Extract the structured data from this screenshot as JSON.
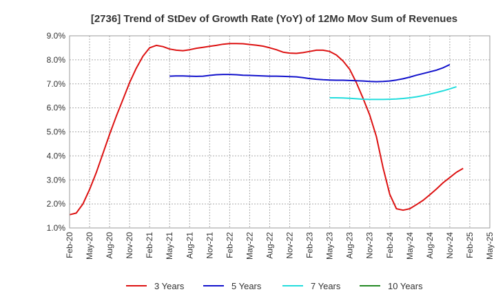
{
  "chart_data": {
    "type": "line",
    "title": "[2736]  Trend of StDev of Growth Rate (YoY) of 12Mo Mov Sum of Revenues",
    "xlabel": "",
    "ylabel": "",
    "ylim": [
      1.0,
      9.0
    ],
    "y_ticks": [
      1.0,
      2.0,
      3.0,
      4.0,
      5.0,
      6.0,
      7.0,
      8.0,
      9.0
    ],
    "y_tick_labels": [
      "1.0%",
      "2.0%",
      "3.0%",
      "4.0%",
      "5.0%",
      "6.0%",
      "7.0%",
      "8.0%",
      "9.0%"
    ],
    "x_range": [
      0,
      63
    ],
    "x_ticks": [
      0,
      3,
      6,
      9,
      12,
      15,
      18,
      21,
      24,
      27,
      30,
      33,
      36,
      39,
      42,
      45,
      48,
      51,
      54,
      57,
      60,
      63
    ],
    "x_tick_labels": [
      "Feb-20",
      "May-20",
      "Aug-20",
      "Nov-20",
      "Feb-21",
      "May-21",
      "Aug-21",
      "Nov-21",
      "Feb-22",
      "May-22",
      "Aug-22",
      "Nov-22",
      "Feb-23",
      "May-23",
      "Aug-23",
      "Nov-23",
      "Feb-24",
      "May-24",
      "Aug-24",
      "Nov-24",
      "Feb-25",
      "May-25"
    ],
    "grid": true,
    "legend_position": "bottom",
    "series": [
      {
        "name": "3 Years",
        "color": "#dd1111",
        "start": 0,
        "values": [
          1.55,
          1.62,
          2.0,
          2.6,
          3.3,
          4.1,
          4.9,
          5.65,
          6.35,
          7.05,
          7.65,
          8.15,
          8.5,
          8.6,
          8.55,
          8.45,
          8.4,
          8.38,
          8.42,
          8.48,
          8.52,
          8.56,
          8.6,
          8.65,
          8.68,
          8.68,
          8.67,
          8.64,
          8.61,
          8.57,
          8.5,
          8.42,
          8.32,
          8.28,
          8.27,
          8.3,
          8.35,
          8.4,
          8.4,
          8.35,
          8.2,
          7.95,
          7.6,
          7.05,
          6.4,
          5.7,
          4.8,
          3.5,
          2.4,
          1.8,
          1.74,
          1.8,
          1.97,
          2.15,
          2.38,
          2.62,
          2.88,
          3.1,
          3.32,
          3.48
        ]
      },
      {
        "name": "5 Years",
        "color": "#1111cc",
        "start": 15,
        "values": [
          7.32,
          7.33,
          7.33,
          7.32,
          7.31,
          7.32,
          7.35,
          7.38,
          7.39,
          7.39,
          7.38,
          7.36,
          7.35,
          7.34,
          7.33,
          7.32,
          7.32,
          7.31,
          7.3,
          7.29,
          7.26,
          7.22,
          7.19,
          7.17,
          7.16,
          7.15,
          7.15,
          7.14,
          7.13,
          7.12,
          7.1,
          7.09,
          7.1,
          7.12,
          7.16,
          7.21,
          7.28,
          7.36,
          7.43,
          7.5,
          7.57,
          7.67,
          7.8
        ]
      },
      {
        "name": "7 Years",
        "color": "#22dddd",
        "start": 39,
        "values": [
          6.42,
          6.42,
          6.41,
          6.4,
          6.38,
          6.36,
          6.35,
          6.35,
          6.35,
          6.36,
          6.37,
          6.39,
          6.42,
          6.46,
          6.51,
          6.57,
          6.64,
          6.71,
          6.79,
          6.88
        ]
      },
      {
        "name": "10 Years",
        "color": "#228822",
        "start": 0,
        "values": []
      }
    ]
  }
}
